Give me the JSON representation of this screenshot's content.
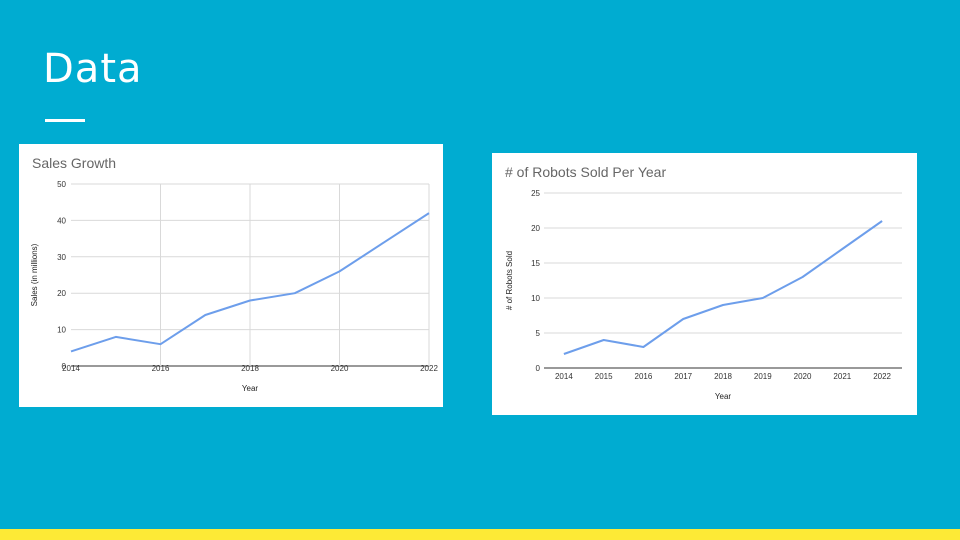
{
  "slide": {
    "title": "Data",
    "background": "#00acd1",
    "accent_bar_color": "#fdea36"
  },
  "chart_data": [
    {
      "type": "line",
      "title": "Sales Growth",
      "xlabel": "Year",
      "ylabel": "Sales (in millions)",
      "x": [
        2014,
        2015,
        2016,
        2017,
        2018,
        2019,
        2020,
        2021,
        2022
      ],
      "xticks": [
        2014,
        2016,
        2018,
        2020,
        2022
      ],
      "yticks": [
        0,
        10,
        20,
        30,
        40,
        50
      ],
      "xlim": [
        2014,
        2022
      ],
      "ylim": [
        0,
        50
      ],
      "grid": true,
      "vertical_grid": true,
      "series": [
        {
          "values": [
            4,
            8,
            6,
            14,
            18,
            20,
            26,
            34,
            42
          ],
          "color": "#6d9eeb"
        }
      ]
    },
    {
      "type": "line",
      "title": "# of Robots Sold Per Year",
      "xlabel": "Year",
      "ylabel": "# of Robots Sold",
      "x": [
        2014,
        2015,
        2016,
        2017,
        2018,
        2019,
        2020,
        2021,
        2022
      ],
      "xticks": [
        2014,
        2015,
        2016,
        2017,
        2018,
        2019,
        2020,
        2021,
        2022
      ],
      "yticks": [
        0,
        5,
        10,
        15,
        20,
        25
      ],
      "xlim": [
        2013.5,
        2022.5
      ],
      "ylim": [
        0,
        25
      ],
      "grid": true,
      "vertical_grid": false,
      "series": [
        {
          "values": [
            2,
            4,
            3,
            7,
            9,
            10,
            13,
            17,
            21
          ],
          "color": "#6d9eeb"
        }
      ]
    }
  ]
}
